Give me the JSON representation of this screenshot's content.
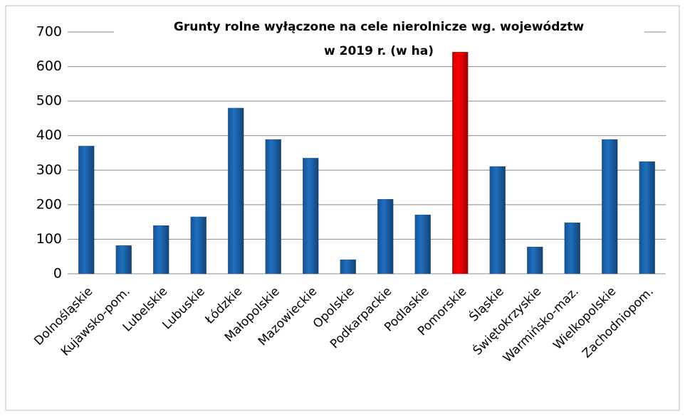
{
  "chart_data": {
    "type": "bar",
    "title_lines": [
      "Grunty rolne wyłączone  na cele nierolnicze  wg. województw",
      "w 2019 r. (w ha)"
    ],
    "categories": [
      "Dolnośląskie",
      "Kujawsko-pom.",
      "Lubelskie",
      "Lubuskie",
      "Łódzkie",
      "Małopolskie",
      "Mazowieckie",
      "Opolskie",
      "Podkarpackie",
      "Podlaskie",
      "Pomorskie",
      "Śląskie",
      "Świętokrzyskie",
      "Warmińsko-maz.",
      "Wielkopolskie",
      "Zachodniopom."
    ],
    "values": [
      370,
      82,
      140,
      165,
      480,
      389,
      335,
      41,
      216,
      171,
      642,
      311,
      78,
      148,
      389,
      325
    ],
    "colors": [
      "#1f6fc0",
      "#1f6fc0",
      "#1f6fc0",
      "#1f6fc0",
      "#1f6fc0",
      "#1f6fc0",
      "#1f6fc0",
      "#1f6fc0",
      "#1f6fc0",
      "#1f6fc0",
      "#ff0000",
      "#1f6fc0",
      "#1f6fc0",
      "#1f6fc0",
      "#1f6fc0",
      "#1f6fc0"
    ],
    "ylim": [
      0,
      700
    ],
    "yticks": [
      0,
      100,
      200,
      300,
      400,
      500,
      600,
      700
    ],
    "grid": true
  }
}
